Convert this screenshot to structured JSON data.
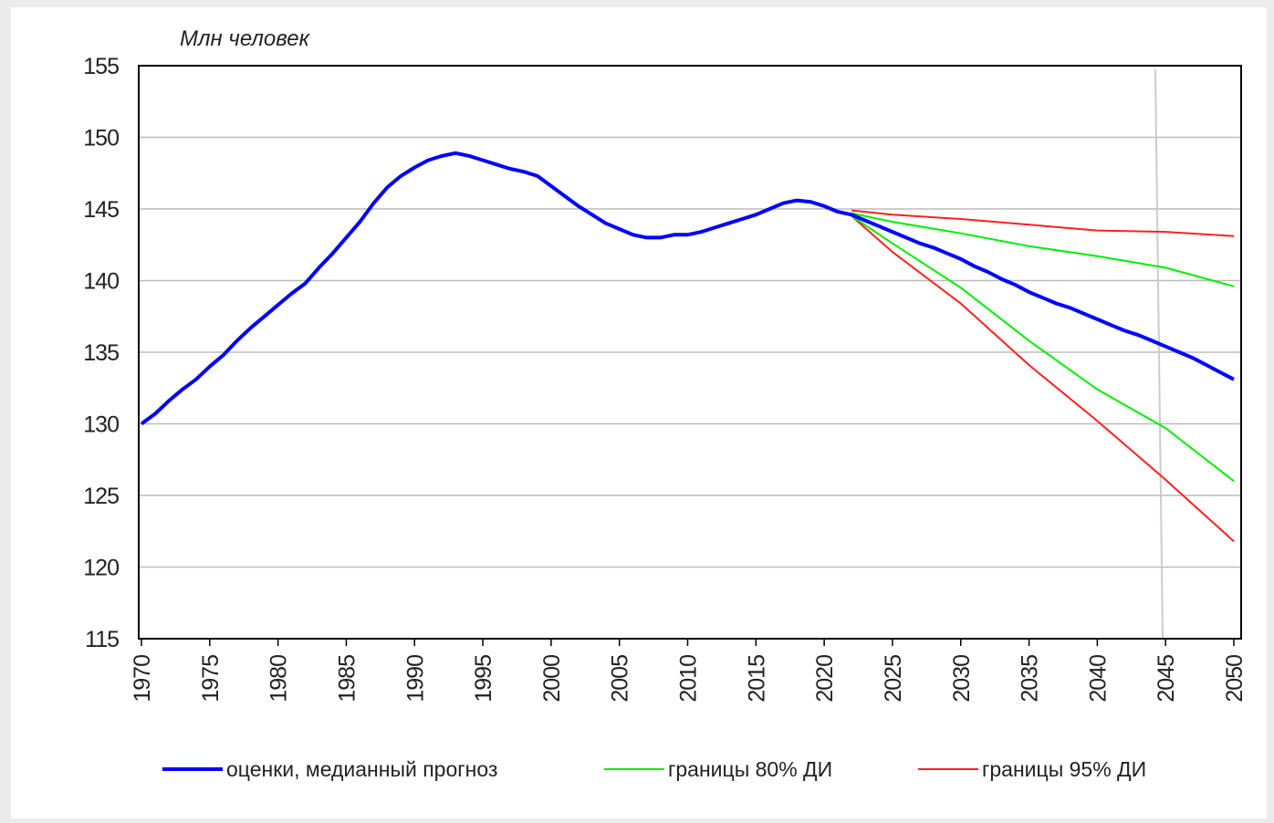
{
  "chart_data": {
    "type": "line",
    "y_label": "Млн человек",
    "x": [
      1970,
      1971,
      1972,
      1973,
      1974,
      1975,
      1976,
      1977,
      1978,
      1979,
      1980,
      1981,
      1982,
      1983,
      1984,
      1985,
      1986,
      1987,
      1988,
      1989,
      1990,
      1991,
      1992,
      1993,
      1994,
      1995,
      1996,
      1997,
      1998,
      1999,
      2000,
      2001,
      2002,
      2003,
      2004,
      2005,
      2006,
      2007,
      2008,
      2009,
      2010,
      2011,
      2012,
      2013,
      2014,
      2015,
      2016,
      2017,
      2018,
      2019,
      2020,
      2021,
      2022,
      2023,
      2024,
      2025,
      2026,
      2027,
      2028,
      2029,
      2030,
      2031,
      2032,
      2033,
      2034,
      2035,
      2036,
      2037,
      2038,
      2039,
      2040,
      2041,
      2042,
      2043,
      2044,
      2045,
      2046,
      2047,
      2048,
      2049,
      2050
    ],
    "series": [
      {
        "name": "оценки, медианный прогноз",
        "color": "#0000ff",
        "width": 4,
        "values": [
          130.0,
          130.7,
          131.6,
          132.4,
          133.1,
          134.0,
          134.8,
          135.8,
          136.7,
          137.5,
          138.3,
          139.1,
          139.8,
          140.9,
          141.9,
          143.0,
          144.1,
          145.4,
          146.5,
          147.3,
          147.9,
          148.4,
          148.7,
          148.9,
          148.7,
          148.4,
          148.1,
          147.8,
          147.6,
          147.3,
          146.6,
          145.9,
          145.2,
          144.6,
          144.0,
          143.6,
          143.2,
          143.0,
          143.0,
          143.2,
          143.2,
          143.4,
          143.7,
          144.0,
          144.3,
          144.6,
          145.0,
          145.4,
          145.6,
          145.5,
          145.2,
          144.8,
          144.6,
          144.2,
          143.8,
          143.4,
          143.0,
          142.6,
          142.3,
          141.9,
          141.5,
          141.0,
          140.6,
          140.1,
          139.7,
          139.2,
          138.8,
          138.4,
          138.1,
          137.7,
          137.3,
          136.9,
          136.5,
          136.2,
          135.8,
          135.4,
          135.0,
          134.6,
          134.1,
          133.6,
          133.1
        ]
      },
      {
        "name": "границы 80% ДИ",
        "color": "#00ee00",
        "width": 2,
        "x": [
          2022,
          2025,
          2030,
          2035,
          2040,
          2045,
          2050
        ],
        "values": [
          144.7,
          144.1,
          143.3,
          142.4,
          141.7,
          140.9,
          139.6
        ],
        "lower_values": [
          144.5,
          142.6,
          139.5,
          135.8,
          132.4,
          129.7,
          126.0
        ]
      },
      {
        "name": "границы 95% ДИ",
        "color": "#ff2020",
        "width": 2,
        "x": [
          2022,
          2025,
          2030,
          2035,
          2040,
          2045,
          2050
        ],
        "values": [
          144.9,
          144.6,
          144.3,
          143.9,
          143.5,
          143.4,
          143.1
        ],
        "lower_values": [
          144.5,
          142.0,
          138.4,
          134.1,
          130.2,
          126.1,
          121.8
        ]
      }
    ],
    "xlim": [
      1970,
      2050
    ],
    "xticks": [
      1970,
      1975,
      1980,
      1985,
      1990,
      1995,
      2000,
      2005,
      2010,
      2015,
      2020,
      2025,
      2030,
      2035,
      2040,
      2045,
      2050
    ],
    "ylim": [
      115,
      155
    ],
    "yticks": [
      115,
      120,
      125,
      130,
      135,
      140,
      145,
      150,
      155
    ],
    "grid": true,
    "legend": "bottom"
  }
}
